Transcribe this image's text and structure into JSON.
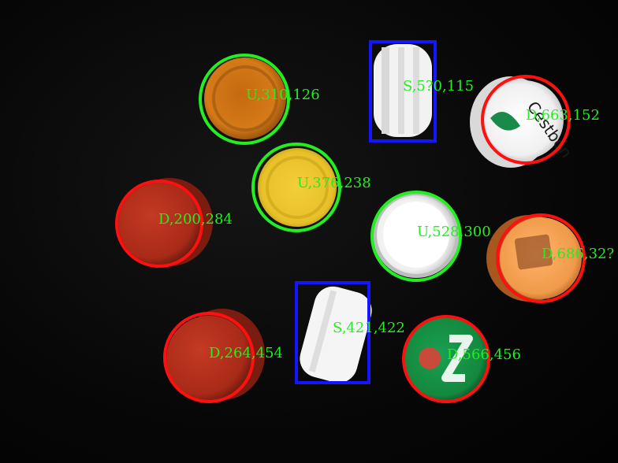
{
  "colors": {
    "up_circle": "#22ee22",
    "down_circle": "#ff1010",
    "side_box": "#1515ff",
    "label_text": "#22ee22"
  },
  "detections": [
    {
      "id": "d1",
      "label": "U,310,126"
    },
    {
      "id": "d2",
      "label": "S,5?0,115"
    },
    {
      "id": "d3",
      "label": "D,663,152"
    },
    {
      "id": "d4",
      "label": "U,376,238"
    },
    {
      "id": "d5",
      "label": "D,200,284"
    },
    {
      "id": "d6",
      "label": "U,528,300"
    },
    {
      "id": "d7",
      "label": "D,686,32?"
    },
    {
      "id": "d8",
      "label": "S,421,422"
    },
    {
      "id": "d9",
      "label": "D,264,454"
    },
    {
      "id": "d10",
      "label": "D,566,456"
    }
  ]
}
